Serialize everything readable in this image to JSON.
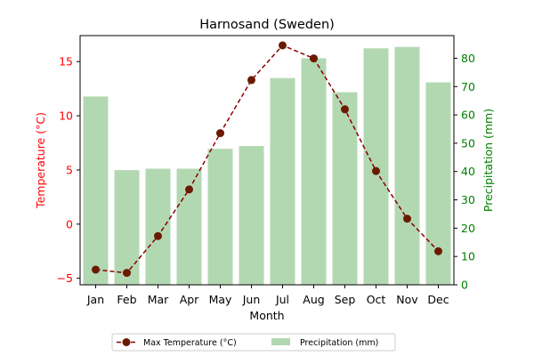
{
  "chart_data": {
    "type": "bar+line",
    "title": "Harnosand (Sweden)",
    "xlabel": "Month",
    "categories": [
      "Jan",
      "Feb",
      "Mar",
      "Apr",
      "May",
      "Jun",
      "Jul",
      "Aug",
      "Sep",
      "Oct",
      "Nov",
      "Dec"
    ],
    "left_axis": {
      "label": "Temperature (°C)",
      "color": "#ff0000",
      "ylim": [
        -5.6,
        17.4
      ],
      "ticks": [
        -5,
        0,
        5,
        10,
        15
      ]
    },
    "right_axis": {
      "label": "Precipitation (mm)",
      "color": "#008000",
      "ylim": [
        0,
        88
      ],
      "ticks": [
        0,
        10,
        20,
        30,
        40,
        50,
        60,
        70,
        80
      ]
    },
    "series": [
      {
        "name": "Max Temperature (°C)",
        "kind": "line",
        "axis": "left",
        "color": "#8b0000",
        "marker_color": "#6b1a00",
        "dashed": true,
        "values": [
          -4.2,
          -4.5,
          -1.1,
          3.2,
          8.4,
          13.3,
          16.5,
          15.3,
          10.6,
          4.9,
          0.5,
          -2.5
        ]
      },
      {
        "name": "Precipitation (mm)",
        "kind": "bar",
        "axis": "right",
        "color": "#b2d8b2",
        "values": [
          66.5,
          40.5,
          41,
          41,
          48,
          49,
          73,
          80,
          68,
          83.5,
          84,
          71.5
        ]
      }
    ],
    "legend_position": "bottom-center",
    "grid": false
  }
}
